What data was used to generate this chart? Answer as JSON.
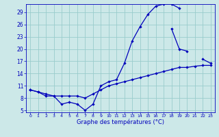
{
  "xlabel": "Graphe des températures (°C)",
  "background_color": "#cce8e8",
  "grid_color": "#99cccc",
  "line_color": "#0000bb",
  "ylim": [
    4.5,
    31
  ],
  "yticks": [
    5,
    8,
    11,
    14,
    17,
    20,
    23,
    26,
    29
  ],
  "xticks": [
    0,
    1,
    2,
    3,
    4,
    5,
    6,
    7,
    8,
    9,
    10,
    11,
    12,
    13,
    14,
    15,
    16,
    17,
    18,
    19,
    20,
    21,
    22,
    23
  ],
  "s1": [
    10.0,
    9.5,
    8.5,
    8.5,
    6.5,
    7.0,
    6.5,
    5.0,
    6.5,
    11.0,
    12.0,
    12.5,
    16.5,
    22.0,
    25.5,
    28.5,
    30.5,
    31.0,
    31.0,
    30.0,
    null,
    null,
    null,
    null
  ],
  "s2": [
    10.0,
    9.5,
    9.0,
    8.5,
    8.5,
    8.5,
    8.5,
    8.0,
    9.0,
    10.0,
    11.0,
    11.5,
    12.0,
    12.5,
    13.0,
    13.5,
    14.0,
    14.5,
    15.0,
    15.5,
    15.5,
    15.8,
    16.0,
    16.0
  ],
  "s3": [
    10.0,
    null,
    null,
    null,
    null,
    null,
    null,
    null,
    null,
    null,
    null,
    null,
    null,
    null,
    null,
    null,
    null,
    null,
    25.0,
    20.0,
    19.5,
    null,
    17.5,
    16.5
  ]
}
